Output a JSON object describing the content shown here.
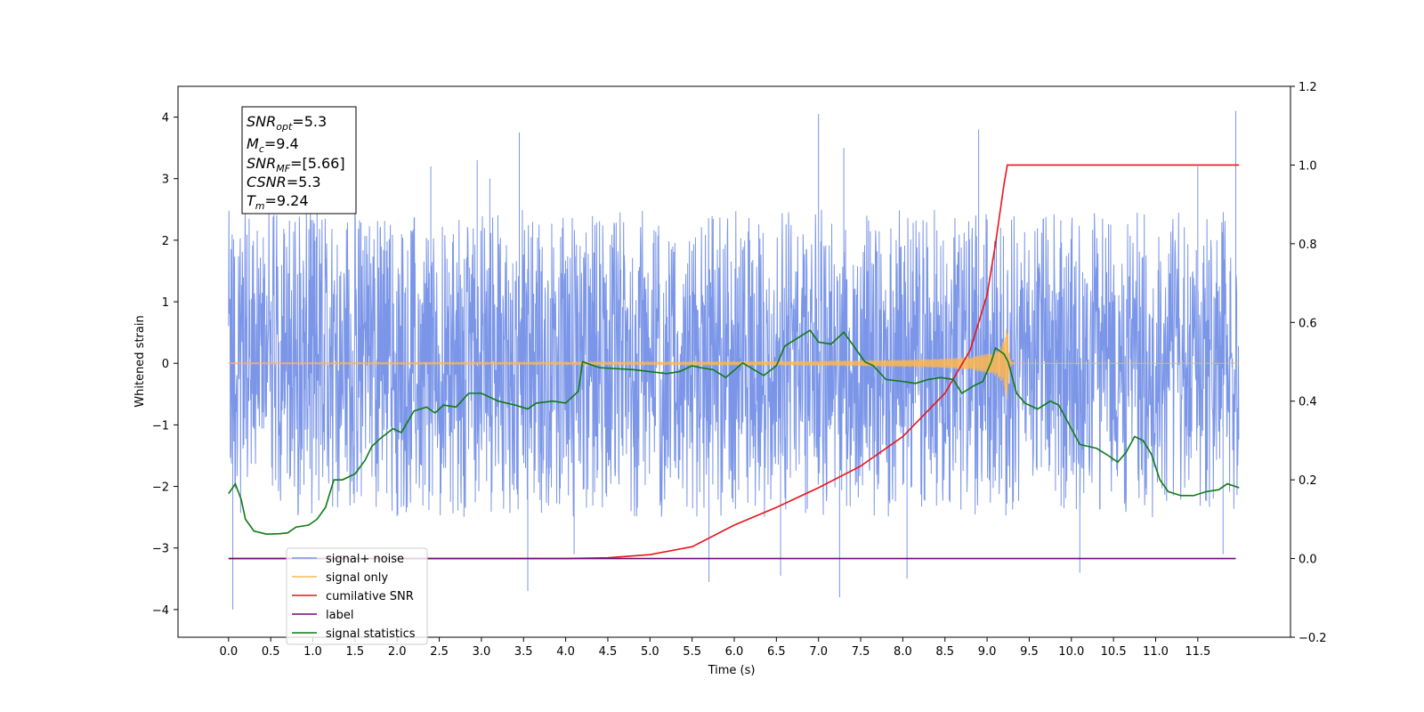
{
  "chart_data": {
    "type": "line",
    "xlabel": "Time (s)",
    "ylabel": "Whitened strain",
    "xlim": [
      -0.6,
      12.6
    ],
    "ylim": [
      -4.45,
      4.5
    ],
    "y2lim": [
      -0.2,
      1.2
    ],
    "x_ticks": [
      "0.0",
      "0.5",
      "1.0",
      "1.5",
      "2.0",
      "2.5",
      "3.0",
      "3.5",
      "4.0",
      "4.5",
      "5.0",
      "5.5",
      "6.0",
      "6.5",
      "7.0",
      "7.5",
      "8.0",
      "8.5",
      "9.0",
      "9.5",
      "10.0",
      "10.5",
      "11.0",
      "11.5"
    ],
    "y_ticks": [
      "4",
      "3",
      "2",
      "1",
      "0",
      "−1",
      "−2",
      "−3",
      "−4"
    ],
    "y2_ticks": [
      "1.2",
      "1.0",
      "0.8",
      "0.6",
      "0.4",
      "0.2",
      "0.0",
      "−0.2"
    ],
    "legend_position": "lower-left",
    "annotation": [
      {
        "base": "SNR",
        "sub": "opt",
        "value": "=5.3"
      },
      {
        "base": "M",
        "sub": "c",
        "value": "=9.4"
      },
      {
        "base": "SNR",
        "sub": "MF",
        "value": "=[5.66]"
      },
      {
        "base": "CSNR",
        "sub": "",
        "value": "=5.3"
      },
      {
        "base": "T",
        "sub": "m",
        "value": "=9.24"
      }
    ],
    "series": [
      {
        "name": "signal+ noise",
        "axis": "left",
        "color": "#7b96e8",
        "style": "noise",
        "x_start": 0.0,
        "x_end": 11.99,
        "envelope": [
          -2.5,
          2.5
        ],
        "spikes": [
          [
            0.05,
            -4.0
          ],
          [
            1.05,
            2.9
          ],
          [
            2.95,
            3.3
          ],
          [
            3.45,
            3.75
          ],
          [
            3.55,
            -3.7
          ],
          [
            4.1,
            -3.1
          ],
          [
            7.0,
            4.05
          ],
          [
            7.3,
            3.5
          ],
          [
            8.05,
            -3.5
          ],
          [
            8.9,
            3.8
          ],
          [
            10.1,
            -3.4
          ],
          [
            11.5,
            3.2
          ],
          [
            11.8,
            -3.1
          ],
          [
            11.95,
            4.1
          ],
          [
            5.7,
            -3.55
          ],
          [
            6.55,
            -3.45
          ],
          [
            7.25,
            -3.8
          ],
          [
            2.4,
            3.2
          ],
          [
            3.1,
            3.0
          ]
        ]
      },
      {
        "name": "signal only",
        "axis": "left",
        "color": "#ffb74d",
        "style": "chirp",
        "x_start": 0.0,
        "x_end": 11.99,
        "merger": 9.24
      },
      {
        "name": "cumilative SNR",
        "axis": "right",
        "color": "#e8141c",
        "points": [
          [
            0,
            0
          ],
          [
            4,
            0
          ],
          [
            4.5,
            0.002
          ],
          [
            5.0,
            0.01
          ],
          [
            5.5,
            0.03
          ],
          [
            6.0,
            0.085
          ],
          [
            6.5,
            0.13
          ],
          [
            7.0,
            0.18
          ],
          [
            7.5,
            0.235
          ],
          [
            8.0,
            0.31
          ],
          [
            8.5,
            0.42
          ],
          [
            8.8,
            0.53
          ],
          [
            9.0,
            0.67
          ],
          [
            9.1,
            0.8
          ],
          [
            9.2,
            0.95
          ],
          [
            9.24,
            1.0
          ],
          [
            11.99,
            1.0
          ]
        ]
      },
      {
        "name": "label",
        "axis": "right",
        "color": "#6a0f70",
        "points": [
          [
            0,
            0
          ],
          [
            11.95,
            0
          ]
        ]
      },
      {
        "name": "signal statistics",
        "axis": "right",
        "color": "#0f7a14",
        "points": [
          [
            0.0,
            0.165
          ],
          [
            0.08,
            0.19
          ],
          [
            0.15,
            0.15
          ],
          [
            0.2,
            0.1
          ],
          [
            0.3,
            0.07
          ],
          [
            0.45,
            0.062
          ],
          [
            0.6,
            0.063
          ],
          [
            0.7,
            0.065
          ],
          [
            0.8,
            0.08
          ],
          [
            0.95,
            0.085
          ],
          [
            1.05,
            0.1
          ],
          [
            1.15,
            0.13
          ],
          [
            1.25,
            0.2
          ],
          [
            1.35,
            0.2
          ],
          [
            1.5,
            0.215
          ],
          [
            1.62,
            0.25
          ],
          [
            1.7,
            0.285
          ],
          [
            1.8,
            0.305
          ],
          [
            1.95,
            0.33
          ],
          [
            2.05,
            0.32
          ],
          [
            2.2,
            0.375
          ],
          [
            2.35,
            0.385
          ],
          [
            2.45,
            0.37
          ],
          [
            2.55,
            0.39
          ],
          [
            2.7,
            0.385
          ],
          [
            2.85,
            0.42
          ],
          [
            3.0,
            0.42
          ],
          [
            3.2,
            0.4
          ],
          [
            3.4,
            0.39
          ],
          [
            3.55,
            0.38
          ],
          [
            3.65,
            0.395
          ],
          [
            3.85,
            0.4
          ],
          [
            4.0,
            0.395
          ],
          [
            4.15,
            0.425
          ],
          [
            4.2,
            0.5
          ],
          [
            4.4,
            0.485
          ],
          [
            4.8,
            0.48
          ],
          [
            5.0,
            0.475
          ],
          [
            5.2,
            0.47
          ],
          [
            5.35,
            0.475
          ],
          [
            5.5,
            0.49
          ],
          [
            5.6,
            0.485
          ],
          [
            5.75,
            0.48
          ],
          [
            5.9,
            0.46
          ],
          [
            6.1,
            0.497
          ],
          [
            6.35,
            0.465
          ],
          [
            6.5,
            0.49
          ],
          [
            6.6,
            0.54
          ],
          [
            6.75,
            0.56
          ],
          [
            6.9,
            0.58
          ],
          [
            7.0,
            0.55
          ],
          [
            7.15,
            0.545
          ],
          [
            7.3,
            0.575
          ],
          [
            7.45,
            0.53
          ],
          [
            7.55,
            0.5
          ],
          [
            7.65,
            0.49
          ],
          [
            7.8,
            0.455
          ],
          [
            8.0,
            0.45
          ],
          [
            8.15,
            0.445
          ],
          [
            8.3,
            0.455
          ],
          [
            8.45,
            0.46
          ],
          [
            8.6,
            0.455
          ],
          [
            8.7,
            0.42
          ],
          [
            8.85,
            0.44
          ],
          [
            8.95,
            0.45
          ],
          [
            9.05,
            0.5
          ],
          [
            9.1,
            0.535
          ],
          [
            9.2,
            0.52
          ],
          [
            9.25,
            0.5
          ],
          [
            9.35,
            0.42
          ],
          [
            9.45,
            0.395
          ],
          [
            9.6,
            0.38
          ],
          [
            9.75,
            0.4
          ],
          [
            9.85,
            0.39
          ],
          [
            10.0,
            0.33
          ],
          [
            10.1,
            0.29
          ],
          [
            10.3,
            0.28
          ],
          [
            10.45,
            0.26
          ],
          [
            10.55,
            0.245
          ],
          [
            10.65,
            0.27
          ],
          [
            10.75,
            0.31
          ],
          [
            10.85,
            0.3
          ],
          [
            10.95,
            0.265
          ],
          [
            11.05,
            0.2
          ],
          [
            11.15,
            0.17
          ],
          [
            11.3,
            0.16
          ],
          [
            11.45,
            0.16
          ],
          [
            11.6,
            0.17
          ],
          [
            11.75,
            0.175
          ],
          [
            11.85,
            0.19
          ],
          [
            11.99,
            0.18
          ]
        ]
      }
    ],
    "legend": [
      {
        "label": "signal+ noise",
        "color": "#7b96e8"
      },
      {
        "label": "signal only",
        "color": "#ffb74d"
      },
      {
        "label": "cumilative SNR",
        "color": "#e8141c"
      },
      {
        "label": "label",
        "color": "#6a0f70"
      },
      {
        "label": "signal statistics",
        "color": "#0f7a14"
      }
    ]
  }
}
